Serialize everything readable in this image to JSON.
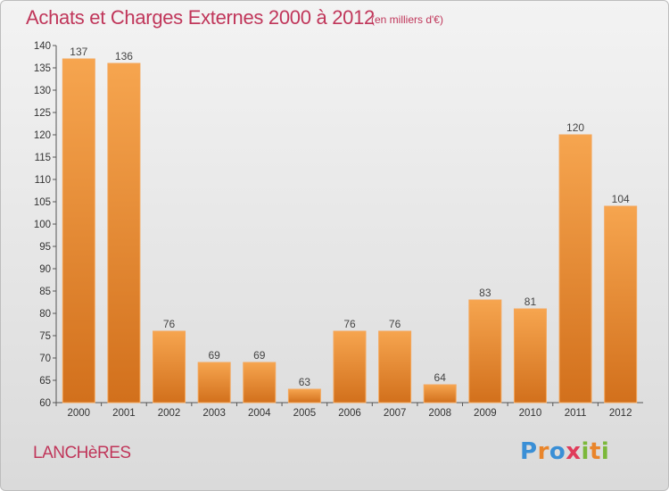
{
  "title": "Achats et Charges Externes 2000 à 2012",
  "subtitle": "(en milliers d'€)",
  "commune": "LANCHèRES",
  "logo": {
    "text": "Proxiti",
    "colors": [
      "#3a8fd6",
      "#e9852b",
      "#7cb83a",
      "#e03c5b"
    ]
  },
  "chart_data": {
    "type": "bar",
    "title": "Achats et Charges Externes 2000 à 2012",
    "subtitle": "(en milliers d'€)",
    "categories": [
      "2000",
      "2001",
      "2002",
      "2003",
      "2004",
      "2005",
      "2006",
      "2007",
      "2008",
      "2009",
      "2010",
      "2011",
      "2012"
    ],
    "values": [
      137,
      136,
      76,
      69,
      69,
      63,
      76,
      76,
      64,
      83,
      81,
      120,
      104
    ],
    "ylim": [
      60,
      140
    ],
    "yticks": [
      60,
      65,
      70,
      75,
      80,
      85,
      90,
      95,
      100,
      105,
      110,
      115,
      120,
      125,
      130,
      135,
      140
    ],
    "grid": false,
    "bar_color_top": "#f6a54f",
    "bar_color_bottom": "#d2701c",
    "bar_edge_color": "#f4a75c"
  }
}
